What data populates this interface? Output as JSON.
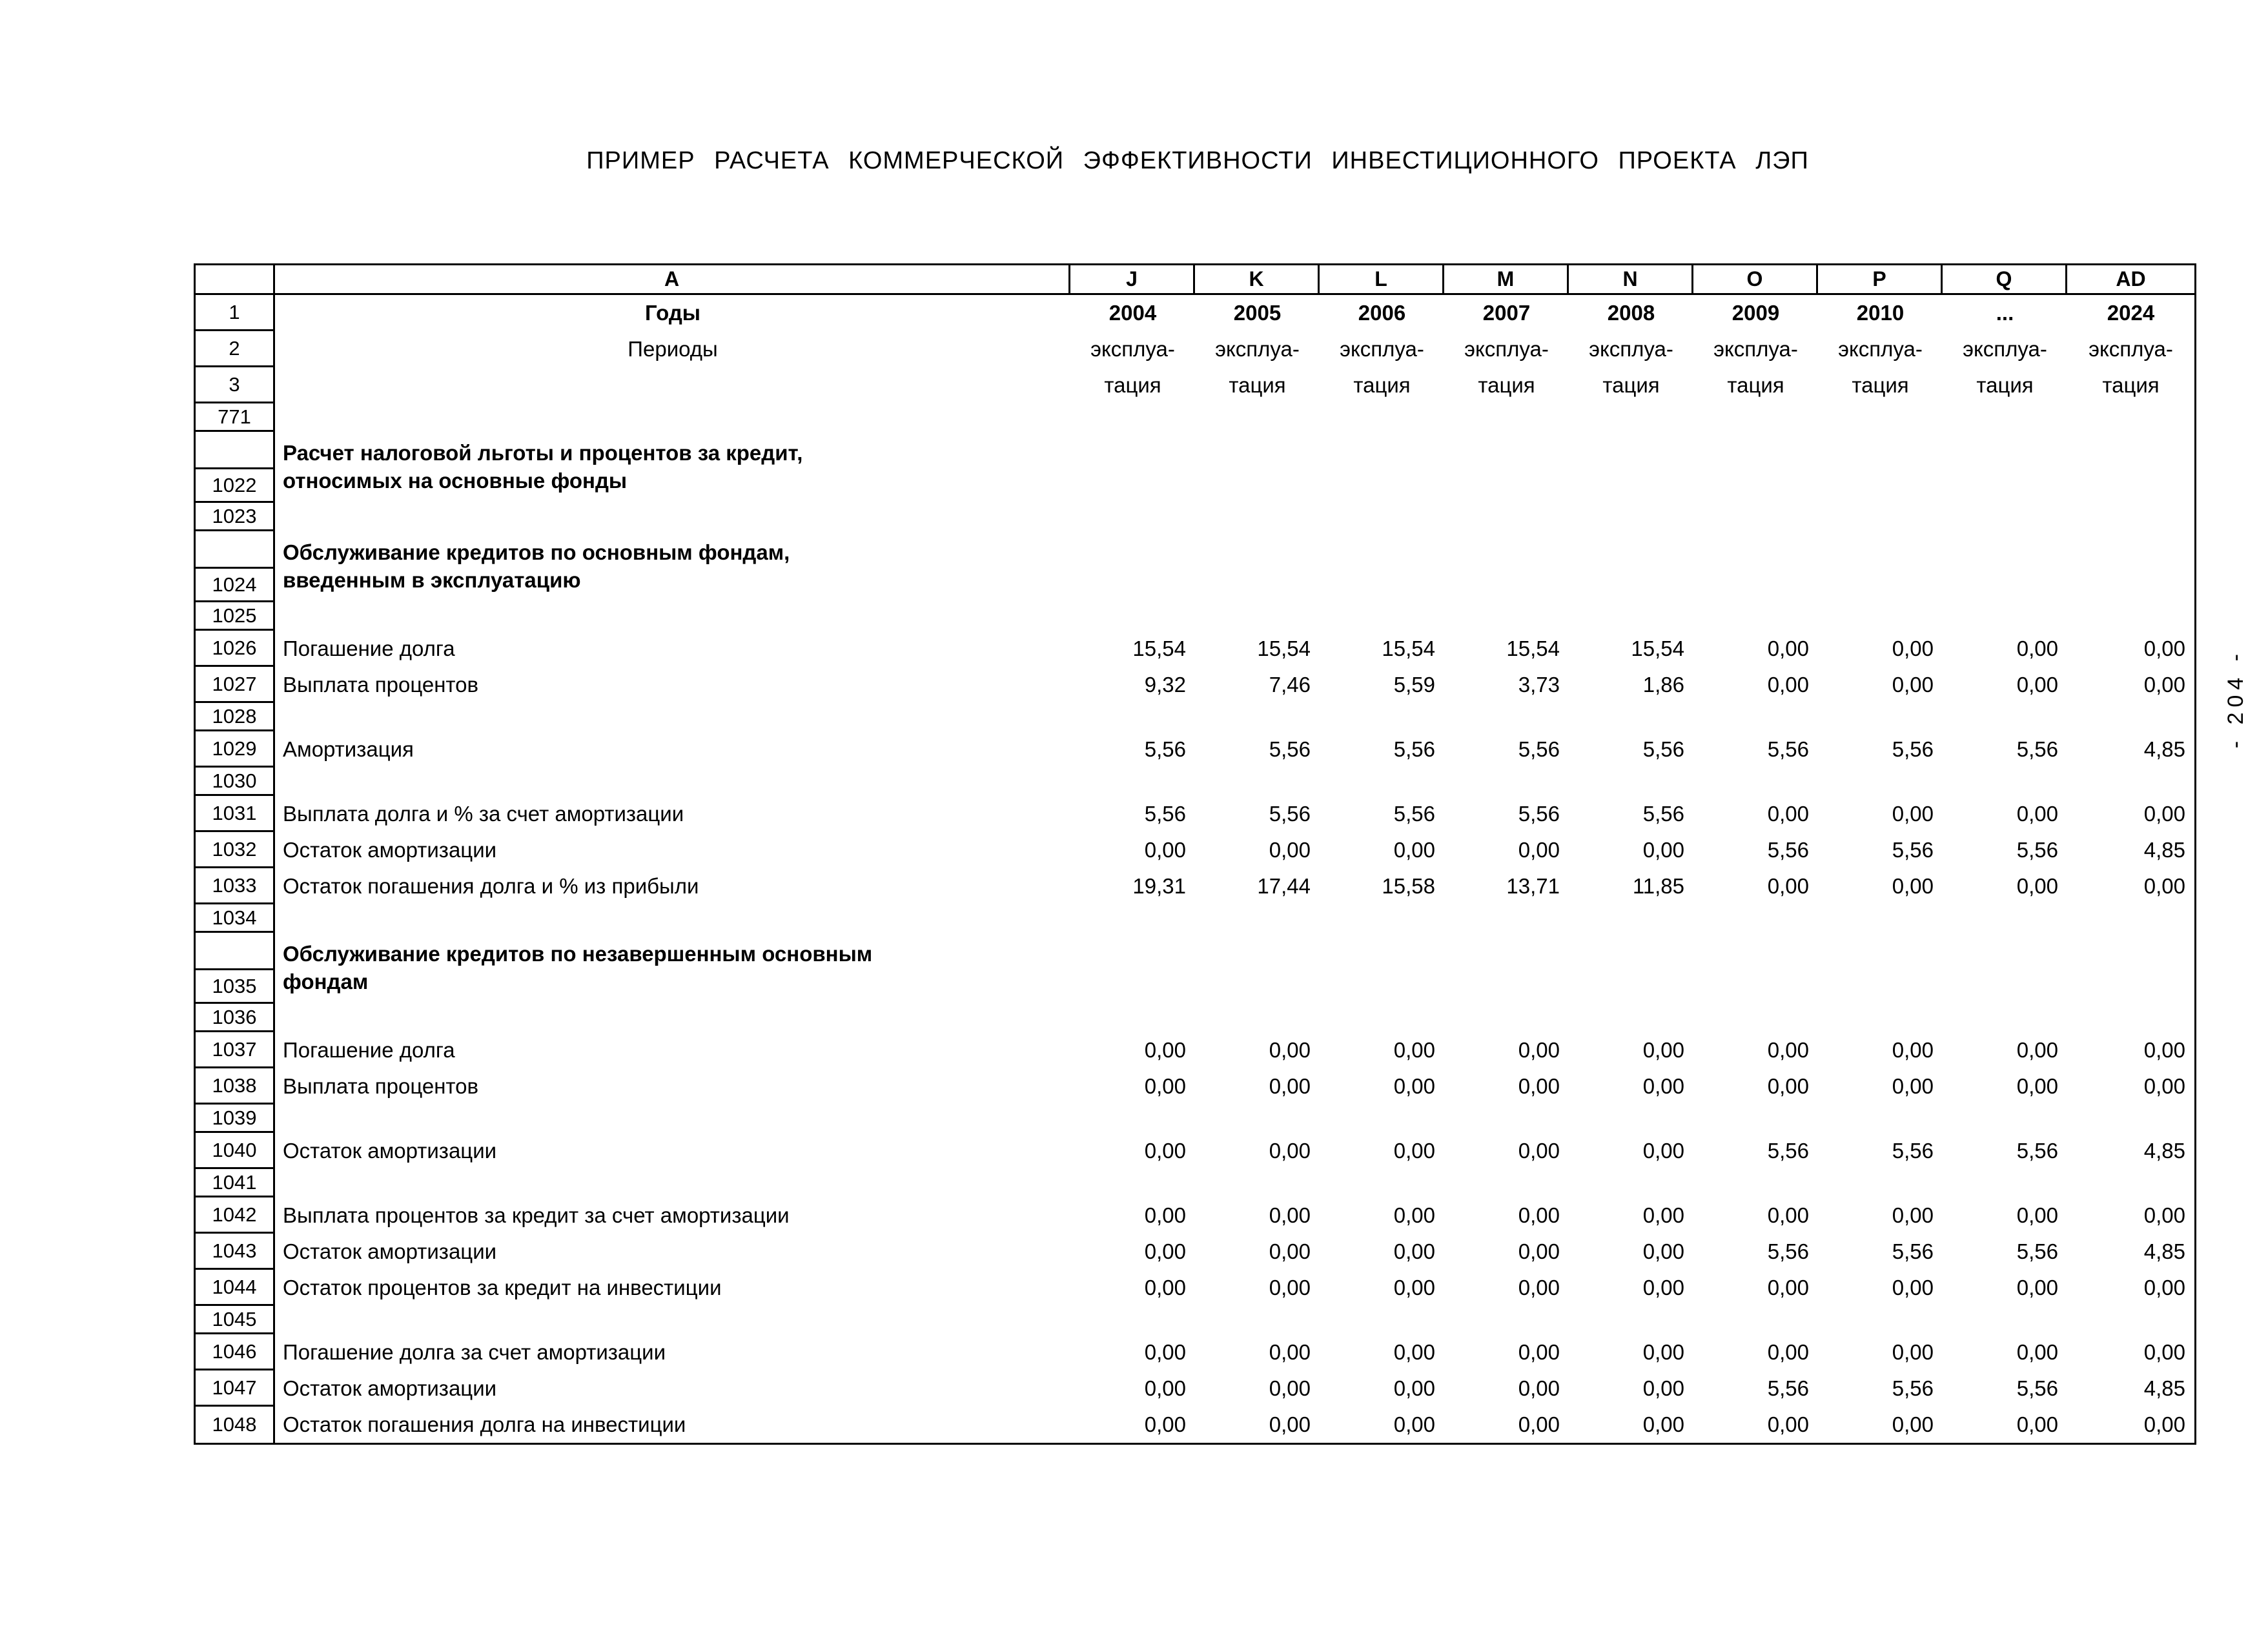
{
  "page": {
    "title": "ПРИМЕР РАСЧЕТА КОММЕРЧЕСКОЙ ЭФФЕКТИВНОСТИ ИНВЕСТИЦИОННОГО ПРОЕКТА ЛЭП",
    "side_marker": "- 204 -"
  },
  "table": {
    "column_letters": [
      "",
      "A",
      "J",
      "K",
      "L",
      "M",
      "N",
      "O",
      "P",
      "Q",
      "AD"
    ],
    "rows": [
      {
        "num": "1",
        "label": "Годы",
        "label_bold": true,
        "label_align": "center",
        "values_bold": true,
        "values_align": "center",
        "values": [
          "2004",
          "2005",
          "2006",
          "2007",
          "2008",
          "2009",
          "2010",
          "...",
          "2024"
        ]
      },
      {
        "num": "2",
        "label": "Периоды",
        "label_align": "center",
        "values_align": "center",
        "values": [
          "эксплуа-",
          "эксплуа-",
          "эксплуа-",
          "эксплуа-",
          "эксплуа-",
          "эксплуа-",
          "эксплуа-",
          "эксплуа-",
          "эксплуа-"
        ]
      },
      {
        "num": "3",
        "label": "",
        "values_align": "center",
        "values": [
          "тация",
          "тация",
          "тация",
          "тация",
          "тация",
          "тация",
          "тация",
          "тация",
          "тация"
        ]
      },
      {
        "num": "771",
        "label": "",
        "size": "short",
        "values": []
      },
      {
        "num": "1022",
        "label": "Расчет налоговой льготы и процентов за кредит,\nотносимых на основные фонды",
        "label_bold": true,
        "size": "tall",
        "values": []
      },
      {
        "num": "1023",
        "label": "",
        "size": "short",
        "values": []
      },
      {
        "num": "1024",
        "label": "Обслуживание кредитов по основным фондам,\nвведенным в эксплуатацию",
        "label_bold": true,
        "size": "tall",
        "values": []
      },
      {
        "num": "1025",
        "label": "",
        "size": "short",
        "values": []
      },
      {
        "num": "1026",
        "label": "Погашение долга",
        "values": [
          "15,54",
          "15,54",
          "15,54",
          "15,54",
          "15,54",
          "0,00",
          "0,00",
          "0,00",
          "0,00"
        ]
      },
      {
        "num": "1027",
        "label": "Выплата процентов",
        "values": [
          "9,32",
          "7,46",
          "5,59",
          "3,73",
          "1,86",
          "0,00",
          "0,00",
          "0,00",
          "0,00"
        ]
      },
      {
        "num": "1028",
        "label": "",
        "size": "short",
        "values": []
      },
      {
        "num": "1029",
        "label": "Амортизация",
        "values": [
          "5,56",
          "5,56",
          "5,56",
          "5,56",
          "5,56",
          "5,56",
          "5,56",
          "5,56",
          "4,85"
        ]
      },
      {
        "num": "1030",
        "label": "",
        "size": "short",
        "values": []
      },
      {
        "num": "1031",
        "label": "Выплата долга и % за счет амортизации",
        "values": [
          "5,56",
          "5,56",
          "5,56",
          "5,56",
          "5,56",
          "0,00",
          "0,00",
          "0,00",
          "0,00"
        ]
      },
      {
        "num": "1032",
        "label": "Остаток амортизации",
        "values": [
          "0,00",
          "0,00",
          "0,00",
          "0,00",
          "0,00",
          "5,56",
          "5,56",
          "5,56",
          "4,85"
        ]
      },
      {
        "num": "1033",
        "label": "Остаток погашения долга и % из прибыли",
        "values": [
          "19,31",
          "17,44",
          "15,58",
          "13,71",
          "11,85",
          "0,00",
          "0,00",
          "0,00",
          "0,00"
        ]
      },
      {
        "num": "1034",
        "label": "",
        "size": "short",
        "values": []
      },
      {
        "num": "1035",
        "label": "Обслуживание кредитов по незавершенным основным\nфондам",
        "label_bold": true,
        "size": "tall",
        "values": []
      },
      {
        "num": "1036",
        "label": "",
        "size": "short",
        "values": []
      },
      {
        "num": "1037",
        "label": "Погашение долга",
        "values": [
          "0,00",
          "0,00",
          "0,00",
          "0,00",
          "0,00",
          "0,00",
          "0,00",
          "0,00",
          "0,00"
        ]
      },
      {
        "num": "1038",
        "label": "Выплата процентов",
        "values": [
          "0,00",
          "0,00",
          "0,00",
          "0,00",
          "0,00",
          "0,00",
          "0,00",
          "0,00",
          "0,00"
        ]
      },
      {
        "num": "1039",
        "label": "",
        "size": "short",
        "values": []
      },
      {
        "num": "1040",
        "label": "Остаток амортизации",
        "values": [
          "0,00",
          "0,00",
          "0,00",
          "0,00",
          "0,00",
          "5,56",
          "5,56",
          "5,56",
          "4,85"
        ]
      },
      {
        "num": "1041",
        "label": "",
        "size": "short",
        "values": []
      },
      {
        "num": "1042",
        "label": "Выплата процентов за кредит за счет амортизации",
        "values": [
          "0,00",
          "0,00",
          "0,00",
          "0,00",
          "0,00",
          "0,00",
          "0,00",
          "0,00",
          "0,00"
        ]
      },
      {
        "num": "1043",
        "label": "Остаток амортизации",
        "values": [
          "0,00",
          "0,00",
          "0,00",
          "0,00",
          "0,00",
          "5,56",
          "5,56",
          "5,56",
          "4,85"
        ]
      },
      {
        "num": "1044",
        "label": "Остаток процентов за кредит на инвестиции",
        "values": [
          "0,00",
          "0,00",
          "0,00",
          "0,00",
          "0,00",
          "0,00",
          "0,00",
          "0,00",
          "0,00"
        ]
      },
      {
        "num": "1045",
        "label": "",
        "size": "short",
        "values": []
      },
      {
        "num": "1046",
        "label": "Погашение долга за счет амортизации",
        "values": [
          "0,00",
          "0,00",
          "0,00",
          "0,00",
          "0,00",
          "0,00",
          "0,00",
          "0,00",
          "0,00"
        ]
      },
      {
        "num": "1047",
        "label": "Остаток амортизации",
        "values": [
          "0,00",
          "0,00",
          "0,00",
          "0,00",
          "0,00",
          "5,56",
          "5,56",
          "5,56",
          "4,85"
        ]
      },
      {
        "num": "1048",
        "label": "Остаток погашения долга на инвестиции",
        "values": [
          "0,00",
          "0,00",
          "0,00",
          "0,00",
          "0,00",
          "0,00",
          "0,00",
          "0,00",
          "0,00"
        ]
      }
    ]
  }
}
